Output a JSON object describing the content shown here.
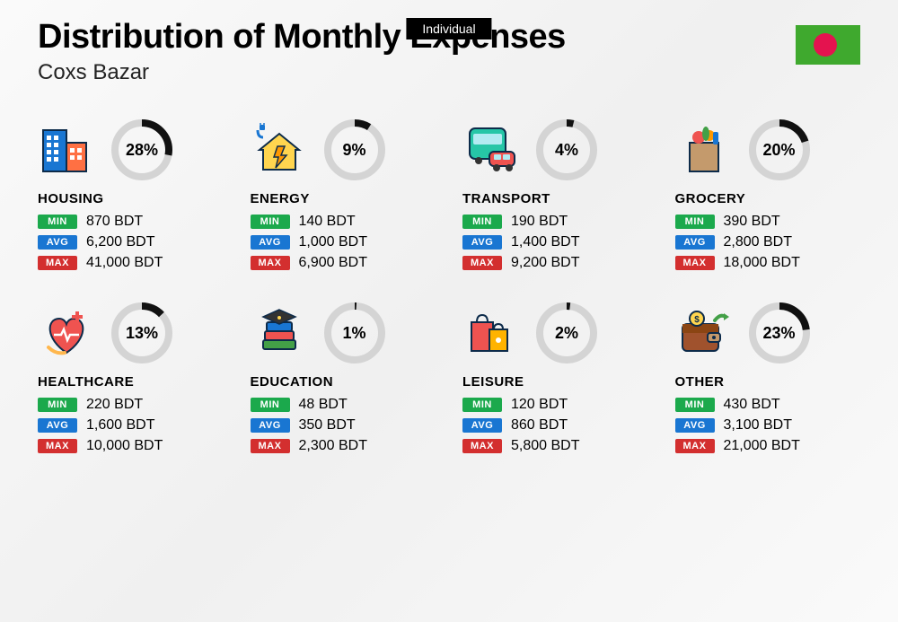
{
  "badge": "Individual",
  "title": "Distribution of Monthly Expenses",
  "subtitle": "Coxs Bazar",
  "currency": "BDT",
  "labels": {
    "min": "MIN",
    "avg": "AVG",
    "max": "MAX"
  },
  "colors": {
    "badge_bg": "#000000",
    "min": "#1ba94c",
    "avg": "#1976d2",
    "max": "#d32f2f",
    "donut_bg": "#d4d4d4",
    "donut_fg": "#111111",
    "flag_bg": "#3fa92e",
    "flag_circle": "#e4134f"
  },
  "donut": {
    "size": 68,
    "stroke": 8
  },
  "categories": [
    {
      "key": "housing",
      "name": "HOUSING",
      "percent": 28,
      "min": "870",
      "avg": "6,200",
      "max": "41,000",
      "icon": "buildings"
    },
    {
      "key": "energy",
      "name": "ENERGY",
      "percent": 9,
      "min": "140",
      "avg": "1,000",
      "max": "6,900",
      "icon": "energy-house"
    },
    {
      "key": "transport",
      "name": "TRANSPORT",
      "percent": 4,
      "min": "190",
      "avg": "1,400",
      "max": "9,200",
      "icon": "bus-car"
    },
    {
      "key": "grocery",
      "name": "GROCERY",
      "percent": 20,
      "min": "390",
      "avg": "2,800",
      "max": "18,000",
      "icon": "grocery-bag"
    },
    {
      "key": "healthcare",
      "name": "HEALTHCARE",
      "percent": 13,
      "min": "220",
      "avg": "1,600",
      "max": "10,000",
      "icon": "health-heart"
    },
    {
      "key": "education",
      "name": "EDUCATION",
      "percent": 1,
      "min": "48",
      "avg": "350",
      "max": "2,300",
      "icon": "grad-books"
    },
    {
      "key": "leisure",
      "name": "LEISURE",
      "percent": 2,
      "min": "120",
      "avg": "860",
      "max": "5,800",
      "icon": "shopping-bags"
    },
    {
      "key": "other",
      "name": "OTHER",
      "percent": 23,
      "min": "430",
      "avg": "3,100",
      "max": "21,000",
      "icon": "wallet-arrow"
    }
  ]
}
